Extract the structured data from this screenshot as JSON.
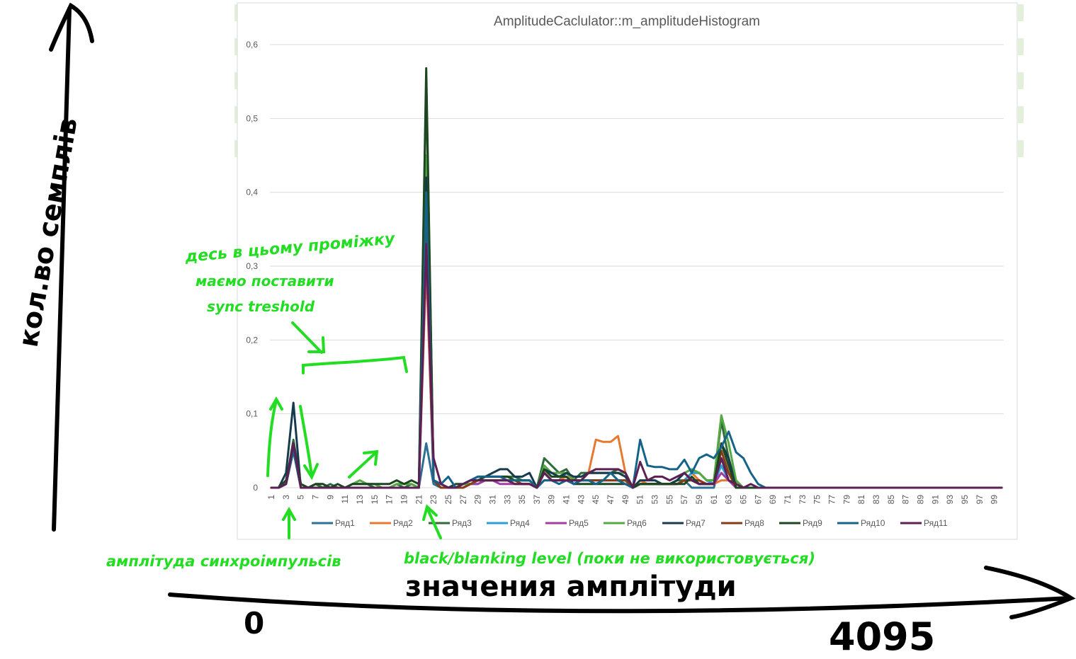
{
  "colors": {
    "background": "#ffffff",
    "grid": "#d9d9d9",
    "axis_text": "#595959",
    "annotation_green": "#22dd22",
    "annotation_black": "#000000",
    "cell_green": "#e2f0d9"
  },
  "annotations": {
    "y_axis_label": "кол.во семплів",
    "x_axis_label": "значения амплітуди",
    "x_axis_min": "0",
    "x_axis_max": "4095",
    "threshold_note_line1": "десь в цьому проміжку",
    "threshold_note_line2": "маємо поставити",
    "threshold_note_line3": "sync treshold",
    "sync_pulse_note": "амплітуда синхроімпульсів",
    "black_level_note": "black/blanking level (поки не використовується)"
  },
  "chart_data": {
    "type": "line",
    "title": "AmplitudeCaclulator::m_amplitudeHistogram",
    "xlabel": "",
    "ylabel": "",
    "x": [
      1,
      2,
      3,
      4,
      5,
      6,
      7,
      8,
      9,
      10,
      11,
      12,
      13,
      14,
      15,
      16,
      17,
      18,
      19,
      20,
      21,
      22,
      23,
      24,
      25,
      26,
      27,
      28,
      29,
      30,
      31,
      32,
      33,
      34,
      35,
      36,
      37,
      38,
      39,
      40,
      41,
      42,
      43,
      44,
      45,
      46,
      47,
      48,
      49,
      50,
      51,
      52,
      53,
      54,
      55,
      56,
      57,
      58,
      59,
      60,
      61,
      62,
      63,
      64,
      65,
      66,
      67,
      68,
      69,
      70,
      71,
      72,
      73,
      74,
      75,
      76,
      77,
      78,
      79,
      80,
      81,
      82,
      83,
      84,
      85,
      86,
      87,
      88,
      89,
      90,
      91,
      92,
      93,
      94,
      95,
      96,
      97,
      98,
      99,
      100
    ],
    "x_tick_labels": [
      "1",
      "3",
      "5",
      "7",
      "9",
      "11",
      "13",
      "15",
      "17",
      "19",
      "21",
      "23",
      "25",
      "27",
      "29",
      "31",
      "33",
      "35",
      "37",
      "39",
      "41",
      "43",
      "45",
      "47",
      "49",
      "51",
      "53",
      "55",
      "57",
      "59",
      "61",
      "63",
      "65",
      "67",
      "69",
      "71",
      "73",
      "75",
      "77",
      "79",
      "81",
      "83",
      "85",
      "87",
      "89",
      "91",
      "93",
      "95",
      "97",
      "99"
    ],
    "ylim": [
      0,
      0.6
    ],
    "y_ticks": [
      "0",
      "0,1",
      "0,2",
      "0,3",
      "0,4",
      "0,5",
      "0,6"
    ],
    "grid": true,
    "legend_position": "bottom",
    "series": [
      {
        "name": "Ряд1",
        "color": "#2e6f96",
        "values": [
          0,
          0,
          0.005,
          0.06,
          0,
          0,
          0,
          0,
          0,
          0,
          0,
          0,
          0,
          0,
          0,
          0,
          0,
          0,
          0,
          0,
          0,
          0.06,
          0.005,
          0,
          0,
          0,
          0.005,
          0.005,
          0.01,
          0.01,
          0.01,
          0.01,
          0.01,
          0.01,
          0.01,
          0.01,
          0,
          0.02,
          0.01,
          0.01,
          0.02,
          0.01,
          0.01,
          0.01,
          0.01,
          0.01,
          0.01,
          0.01,
          0.01,
          0,
          0.005,
          0.005,
          0.005,
          0.005,
          0.005,
          0.005,
          0.01,
          0,
          0,
          0,
          0,
          0.04,
          0.02,
          0,
          0,
          0,
          0,
          0,
          0,
          0,
          0,
          0,
          0,
          0,
          0,
          0,
          0,
          0,
          0,
          0,
          0,
          0,
          0,
          0,
          0,
          0,
          0,
          0,
          0,
          0,
          0,
          0,
          0,
          0,
          0,
          0,
          0,
          0,
          0,
          0
        ]
      },
      {
        "name": "Ряд2",
        "color": "#e9782f",
        "values": [
          0,
          0,
          0.01,
          0.05,
          0,
          0,
          0,
          0,
          0,
          0,
          0,
          0,
          0,
          0,
          0,
          0,
          0,
          0,
          0,
          0,
          0,
          0.3,
          0.01,
          0,
          0,
          0,
          0,
          0.005,
          0.01,
          0.01,
          0.01,
          0.01,
          0.01,
          0.01,
          0.01,
          0.01,
          0,
          0.02,
          0.01,
          0.01,
          0.015,
          0.01,
          0.01,
          0.02,
          0.065,
          0.062,
          0.062,
          0.07,
          0.02,
          0,
          0.01,
          0.005,
          0.005,
          0.005,
          0.005,
          0.005,
          0.01,
          0.02,
          0.01,
          0.005,
          0.005,
          0.01,
          0.01,
          0,
          0,
          0,
          0,
          0,
          0,
          0,
          0,
          0,
          0,
          0,
          0,
          0,
          0,
          0,
          0,
          0,
          0,
          0,
          0,
          0,
          0,
          0,
          0,
          0,
          0,
          0,
          0,
          0,
          0,
          0,
          0,
          0,
          0,
          0,
          0,
          0
        ]
      },
      {
        "name": "Ряд3",
        "color": "#2d6b3a",
        "values": [
          0,
          0,
          0.005,
          0.065,
          0.005,
          0,
          0.005,
          0,
          0.005,
          0,
          0,
          0.005,
          0.005,
          0.005,
          0,
          0,
          0,
          0.005,
          0,
          0.005,
          0,
          0.55,
          0.01,
          0.005,
          0,
          0,
          0.005,
          0.01,
          0.01,
          0.015,
          0.015,
          0.015,
          0.015,
          0.015,
          0.01,
          0.01,
          0,
          0.04,
          0.03,
          0.02,
          0.025,
          0.01,
          0.02,
          0.02,
          0.02,
          0.02,
          0.02,
          0.025,
          0.02,
          0,
          0.005,
          0.005,
          0.005,
          0.005,
          0.005,
          0.01,
          0.01,
          0.02,
          0.02,
          0.01,
          0.01,
          0.09,
          0.04,
          0.005,
          0,
          0,
          0,
          0,
          0,
          0,
          0,
          0,
          0,
          0,
          0,
          0,
          0,
          0,
          0,
          0,
          0,
          0,
          0,
          0,
          0,
          0,
          0,
          0,
          0,
          0,
          0,
          0,
          0,
          0,
          0,
          0,
          0,
          0,
          0,
          0
        ]
      },
      {
        "name": "Ряд4",
        "color": "#2e9fd6",
        "values": [
          0,
          0,
          0.005,
          0.05,
          0,
          0,
          0,
          0,
          0,
          0,
          0,
          0,
          0,
          0,
          0,
          0,
          0,
          0,
          0,
          0,
          0,
          0.38,
          0.01,
          0,
          0,
          0,
          0,
          0.005,
          0.005,
          0.01,
          0.01,
          0.01,
          0.01,
          0.01,
          0.01,
          0.01,
          0,
          0.02,
          0.01,
          0.01,
          0.01,
          0.01,
          0.01,
          0.01,
          0.01,
          0.01,
          0.01,
          0.01,
          0.01,
          0,
          0.005,
          0.005,
          0.005,
          0.005,
          0.005,
          0.005,
          0.01,
          0.02,
          0.02,
          0.01,
          0.005,
          0.03,
          0.01,
          0,
          0,
          0,
          0,
          0,
          0,
          0,
          0,
          0,
          0,
          0,
          0,
          0,
          0,
          0,
          0,
          0,
          0,
          0,
          0,
          0,
          0,
          0,
          0,
          0,
          0,
          0,
          0,
          0,
          0,
          0,
          0,
          0,
          0,
          0,
          0,
          0
        ]
      },
      {
        "name": "Ряд5",
        "color": "#a13ea3",
        "values": [
          0,
          0,
          0.005,
          0.055,
          0,
          0,
          0,
          0,
          0,
          0,
          0,
          0,
          0,
          0,
          0,
          0,
          0,
          0,
          0,
          0,
          0,
          0.32,
          0.01,
          0,
          0,
          0,
          0,
          0.005,
          0.005,
          0.01,
          0.01,
          0.005,
          0.005,
          0.005,
          0.005,
          0.005,
          0,
          0.01,
          0.01,
          0.01,
          0.01,
          0.01,
          0.01,
          0.02,
          0.02,
          0.02,
          0.02,
          0.02,
          0.02,
          0,
          0.005,
          0.005,
          0.005,
          0.005,
          0.005,
          0.005,
          0.01,
          0.01,
          0.01,
          0.005,
          0.005,
          0.02,
          0.01,
          0,
          0,
          0,
          0,
          0,
          0,
          0,
          0,
          0,
          0,
          0,
          0,
          0,
          0,
          0,
          0,
          0,
          0,
          0,
          0,
          0,
          0,
          0,
          0,
          0,
          0,
          0,
          0,
          0,
          0,
          0,
          0,
          0,
          0,
          0,
          0,
          0
        ]
      },
      {
        "name": "Ряд6",
        "color": "#55a843",
        "values": [
          0,
          0,
          0.005,
          0.05,
          0.005,
          0,
          0.005,
          0.005,
          0,
          0,
          0,
          0.005,
          0.01,
          0.005,
          0.005,
          0,
          0,
          0.005,
          0.005,
          0.005,
          0,
          0.45,
          0.01,
          0.005,
          0,
          0,
          0.005,
          0.005,
          0.01,
          0.01,
          0.01,
          0.01,
          0.01,
          0.005,
          0.005,
          0.005,
          0,
          0.03,
          0.02,
          0.02,
          0.02,
          0.01,
          0.01,
          0.02,
          0.02,
          0.02,
          0.02,
          0.02,
          0.02,
          0,
          0.005,
          0.005,
          0.005,
          0.005,
          0.005,
          0.01,
          0.02,
          0.025,
          0.02,
          0.01,
          0.01,
          0.098,
          0.06,
          0.01,
          0,
          0,
          0,
          0,
          0,
          0,
          0,
          0,
          0,
          0,
          0,
          0,
          0,
          0,
          0,
          0,
          0,
          0,
          0,
          0,
          0,
          0,
          0,
          0,
          0,
          0,
          0,
          0,
          0,
          0,
          0,
          0,
          0,
          0,
          0,
          0
        ]
      },
      {
        "name": "Ряд7",
        "color": "#163a4e",
        "values": [
          0,
          0,
          0.02,
          0.115,
          0,
          0,
          0,
          0,
          0,
          0,
          0,
          0,
          0,
          0,
          0,
          0,
          0,
          0,
          0,
          0,
          0,
          0.42,
          0.01,
          0,
          0,
          0,
          0.005,
          0.01,
          0.015,
          0.015,
          0.02,
          0.025,
          0.025,
          0.015,
          0.015,
          0.02,
          0,
          0.025,
          0.02,
          0.015,
          0.02,
          0.015,
          0.015,
          0.02,
          0.02,
          0.02,
          0.02,
          0.02,
          0.015,
          0,
          0.01,
          0.01,
          0.01,
          0.005,
          0.005,
          0.01,
          0.02,
          0.01,
          0.005,
          0.005,
          0.005,
          0.06,
          0.04,
          0,
          0,
          0,
          0,
          0,
          0,
          0,
          0,
          0,
          0,
          0,
          0,
          0,
          0,
          0,
          0,
          0,
          0,
          0,
          0,
          0,
          0,
          0,
          0,
          0,
          0,
          0,
          0,
          0,
          0,
          0,
          0,
          0,
          0,
          0,
          0,
          0
        ]
      },
      {
        "name": "Ряд8",
        "color": "#8a3b14",
        "values": [
          0,
          0,
          0.005,
          0.05,
          0,
          0,
          0,
          0,
          0,
          0,
          0,
          0,
          0,
          0,
          0,
          0,
          0,
          0,
          0,
          0,
          0,
          0.35,
          0.01,
          0,
          0,
          0,
          0,
          0.005,
          0.01,
          0.01,
          0.01,
          0.01,
          0.01,
          0.01,
          0.005,
          0.005,
          0,
          0.02,
          0.01,
          0.01,
          0.01,
          0.01,
          0.01,
          0.01,
          0.01,
          0.01,
          0.01,
          0.01,
          0.01,
          0,
          0.005,
          0.005,
          0.005,
          0.005,
          0.005,
          0.005,
          0.01,
          0.01,
          0.01,
          0.005,
          0.005,
          0.05,
          0.02,
          0,
          0,
          0,
          0,
          0,
          0,
          0,
          0,
          0,
          0,
          0,
          0,
          0,
          0,
          0,
          0,
          0,
          0,
          0,
          0,
          0,
          0,
          0,
          0,
          0,
          0,
          0,
          0,
          0,
          0,
          0,
          0,
          0,
          0,
          0,
          0,
          0
        ]
      },
      {
        "name": "Ряд9",
        "color": "#1c4620",
        "values": [
          0,
          0,
          0.01,
          0.06,
          0.005,
          0,
          0.005,
          0.005,
          0,
          0.005,
          0,
          0.005,
          0.005,
          0.005,
          0.005,
          0.005,
          0.005,
          0.01,
          0.005,
          0.01,
          0.005,
          0.568,
          0.01,
          0.005,
          0,
          0.005,
          0.005,
          0.01,
          0.01,
          0.015,
          0.015,
          0.015,
          0.015,
          0.01,
          0.01,
          0.01,
          0,
          0.025,
          0.015,
          0.015,
          0.015,
          0.005,
          0.005,
          0.005,
          0.005,
          0.005,
          0.005,
          0.005,
          0.005,
          0,
          0.005,
          0.005,
          0.005,
          0.005,
          0.005,
          0.005,
          0.005,
          0.015,
          0.005,
          0.005,
          0.005,
          0.06,
          0.03,
          0,
          0,
          0,
          0,
          0,
          0,
          0,
          0,
          0,
          0,
          0,
          0,
          0,
          0,
          0,
          0,
          0,
          0,
          0,
          0,
          0,
          0,
          0,
          0,
          0,
          0,
          0,
          0,
          0,
          0,
          0,
          0,
          0,
          0,
          0,
          0,
          0
        ]
      },
      {
        "name": "Ряд10",
        "color": "#16638a",
        "values": [
          0,
          0,
          0.005,
          0.05,
          0,
          0,
          0,
          0,
          0,
          0,
          0,
          0,
          0,
          0,
          0,
          0,
          0,
          0,
          0,
          0,
          0,
          0.4,
          0.01,
          0.005,
          0.015,
          0,
          0.005,
          0.01,
          0.015,
          0.015,
          0.015,
          0.015,
          0.01,
          0.01,
          0.01,
          0.01,
          0,
          0.01,
          0.01,
          0.005,
          0.01,
          0.005,
          0.01,
          0.01,
          0.005,
          0.01,
          0.02,
          0.01,
          0.005,
          0,
          0.065,
          0.03,
          0.028,
          0.028,
          0.025,
          0.025,
          0.038,
          0.02,
          0.04,
          0.045,
          0.04,
          0.055,
          0.076,
          0.048,
          0.04,
          0.02,
          0.005,
          0,
          0,
          0,
          0,
          0,
          0,
          0,
          0,
          0,
          0,
          0,
          0,
          0,
          0,
          0,
          0,
          0,
          0,
          0,
          0,
          0,
          0,
          0,
          0,
          0,
          0,
          0,
          0,
          0,
          0,
          0,
          0,
          0
        ]
      },
      {
        "name": "Ряд11",
        "color": "#5e1f55",
        "values": [
          0,
          0,
          0.005,
          0.06,
          0,
          0,
          0,
          0,
          0,
          0,
          0,
          0,
          0,
          0,
          0,
          0,
          0,
          0,
          0,
          0,
          0,
          0.33,
          0.04,
          0.005,
          0,
          0,
          0.005,
          0.01,
          0.01,
          0.01,
          0.01,
          0.01,
          0.01,
          0.005,
          0.005,
          0.005,
          0,
          0.02,
          0.01,
          0.01,
          0.01,
          0.01,
          0.01,
          0.02,
          0.025,
          0.025,
          0.025,
          0.025,
          0.02,
          0,
          0.035,
          0.01,
          0.015,
          0.015,
          0.01,
          0.015,
          0.02,
          0.01,
          0.005,
          0.005,
          0.005,
          0.04,
          0.01,
          0.005,
          0,
          0.005,
          0,
          0,
          0,
          0,
          0,
          0,
          0,
          0,
          0,
          0,
          0,
          0,
          0,
          0,
          0,
          0,
          0,
          0,
          0,
          0,
          0,
          0,
          0,
          0,
          0,
          0,
          0,
          0,
          0,
          0,
          0,
          0,
          0,
          0
        ]
      }
    ]
  }
}
